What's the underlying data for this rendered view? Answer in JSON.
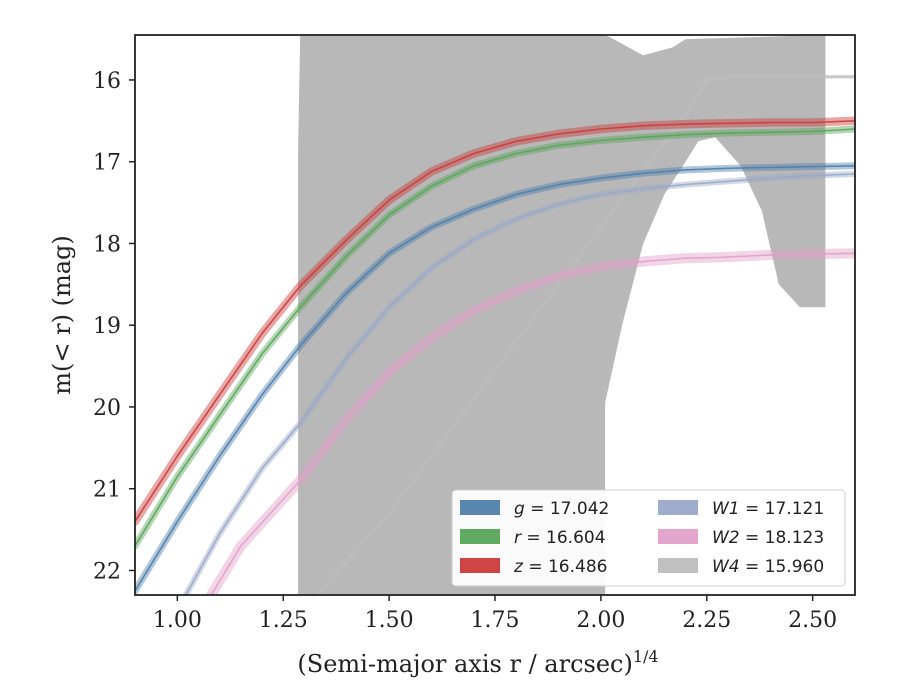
{
  "chart_data": {
    "type": "line",
    "xlabel": "(Semi-major axis r / arcsec)",
    "xlabel_superscript": "1/4",
    "ylabel": "m(< r) (mag)",
    "xlim": [
      0.9,
      2.6
    ],
    "ylim": [
      22.3,
      15.45
    ],
    "y_inverted": true,
    "grid": false,
    "legend_position": "lower-right",
    "xticks": [
      "1.00",
      "1.25",
      "1.50",
      "1.75",
      "2.00",
      "2.25",
      "2.50"
    ],
    "xtick_values": [
      1.0,
      1.25,
      1.5,
      1.75,
      2.0,
      2.25,
      2.5
    ],
    "yticks": [
      "16",
      "17",
      "18",
      "19",
      "20",
      "21",
      "22"
    ],
    "ytick_values": [
      16,
      17,
      18,
      19,
      20,
      21,
      22
    ],
    "series": [
      {
        "name": "g = 17.042",
        "legend_label": "g",
        "legend_value": "17.042",
        "color": "#4f7fab",
        "points": [
          [
            0.9,
            22.25
          ],
          [
            1.0,
            21.4
          ],
          [
            1.1,
            20.6
          ],
          [
            1.2,
            19.85
          ],
          [
            1.29,
            19.25
          ],
          [
            1.4,
            18.6
          ],
          [
            1.5,
            18.12
          ],
          [
            1.6,
            17.8
          ],
          [
            1.7,
            17.58
          ],
          [
            1.8,
            17.4
          ],
          [
            1.9,
            17.28
          ],
          [
            2.0,
            17.2
          ],
          [
            2.1,
            17.14
          ],
          [
            2.2,
            17.1
          ],
          [
            2.3,
            17.08
          ],
          [
            2.4,
            17.07
          ],
          [
            2.5,
            17.06
          ],
          [
            2.6,
            17.05
          ]
        ],
        "band_width": 0.06
      },
      {
        "name": "r = 16.604",
        "legend_label": "r",
        "legend_value": "16.604",
        "color": "#5aa55a",
        "points": [
          [
            0.9,
            21.7
          ],
          [
            1.0,
            20.85
          ],
          [
            1.1,
            20.1
          ],
          [
            1.2,
            19.35
          ],
          [
            1.29,
            18.78
          ],
          [
            1.4,
            18.15
          ],
          [
            1.5,
            17.65
          ],
          [
            1.6,
            17.3
          ],
          [
            1.7,
            17.05
          ],
          [
            1.8,
            16.9
          ],
          [
            1.9,
            16.8
          ],
          [
            2.0,
            16.74
          ],
          [
            2.1,
            16.7
          ],
          [
            2.2,
            16.67
          ],
          [
            2.3,
            16.65
          ],
          [
            2.4,
            16.64
          ],
          [
            2.5,
            16.63
          ],
          [
            2.6,
            16.6
          ]
        ],
        "band_width": 0.06
      },
      {
        "name": "z = 16.486",
        "legend_label": "z",
        "legend_value": "16.486",
        "color": "#cc3b3b",
        "points": [
          [
            0.9,
            21.4
          ],
          [
            1.0,
            20.6
          ],
          [
            1.1,
            19.85
          ],
          [
            1.2,
            19.1
          ],
          [
            1.29,
            18.52
          ],
          [
            1.4,
            17.95
          ],
          [
            1.5,
            17.47
          ],
          [
            1.6,
            17.12
          ],
          [
            1.7,
            16.9
          ],
          [
            1.8,
            16.75
          ],
          [
            1.9,
            16.66
          ],
          [
            2.0,
            16.6
          ],
          [
            2.1,
            16.56
          ],
          [
            2.2,
            16.54
          ],
          [
            2.3,
            16.53
          ],
          [
            2.4,
            16.52
          ],
          [
            2.5,
            16.52
          ],
          [
            2.6,
            16.5
          ]
        ],
        "band_width": 0.08
      },
      {
        "name": "W1 = 17.121",
        "legend_label": "W1",
        "legend_value": "17.121",
        "color": "#9aa8c8",
        "points": [
          [
            1.02,
            22.3
          ],
          [
            1.1,
            21.55
          ],
          [
            1.2,
            20.75
          ],
          [
            1.29,
            20.2
          ],
          [
            1.4,
            19.4
          ],
          [
            1.5,
            18.78
          ],
          [
            1.6,
            18.3
          ],
          [
            1.7,
            17.95
          ],
          [
            1.8,
            17.7
          ],
          [
            1.9,
            17.52
          ],
          [
            2.0,
            17.4
          ],
          [
            2.1,
            17.33
          ],
          [
            2.2,
            17.28
          ],
          [
            2.3,
            17.24
          ],
          [
            2.4,
            17.2
          ],
          [
            2.5,
            17.17
          ],
          [
            2.6,
            17.15
          ]
        ],
        "band_width": 0.05
      },
      {
        "name": "W2 = 18.123",
        "legend_label": "W2",
        "legend_value": "18.123",
        "color": "#e0a0c8",
        "points": [
          [
            1.08,
            22.3
          ],
          [
            1.15,
            21.7
          ],
          [
            1.29,
            20.9
          ],
          [
            1.4,
            20.15
          ],
          [
            1.5,
            19.58
          ],
          [
            1.6,
            19.15
          ],
          [
            1.7,
            18.82
          ],
          [
            1.8,
            18.58
          ],
          [
            1.9,
            18.4
          ],
          [
            2.0,
            18.28
          ],
          [
            2.1,
            18.22
          ],
          [
            2.2,
            18.18
          ],
          [
            2.28,
            18.17
          ],
          [
            2.4,
            18.14
          ],
          [
            2.5,
            18.13
          ],
          [
            2.6,
            18.12
          ]
        ],
        "band_width": 0.1
      },
      {
        "name": "W4 = 15.960",
        "legend_label": "W4",
        "legend_value": "15.960",
        "color": "#bdbdbd",
        "points": [
          [
            1.33,
            22.3
          ],
          [
            1.5,
            21.3
          ],
          [
            1.7,
            19.9
          ],
          [
            1.9,
            18.5
          ],
          [
            2.0,
            17.8
          ],
          [
            2.1,
            17.1
          ],
          [
            2.2,
            16.45
          ],
          [
            2.25,
            16.0
          ],
          [
            2.3,
            15.96
          ],
          [
            2.6,
            15.96
          ]
        ],
        "band_width": 0.02
      }
    ],
    "uncertainty_region": {
      "color": "#b8b8b8",
      "upper": [
        [
          1.285,
          16.85
        ],
        [
          1.29,
          15.45
        ],
        [
          2.0,
          15.45
        ],
        [
          2.01,
          15.45
        ],
        [
          2.03,
          15.5
        ],
        [
          2.1,
          15.7
        ],
        [
          2.17,
          15.6
        ],
        [
          2.2,
          15.5
        ],
        [
          2.53,
          15.45
        ]
      ],
      "lower": [
        [
          1.285,
          22.3
        ],
        [
          2.01,
          22.3
        ],
        [
          2.01,
          19.95
        ],
        [
          2.05,
          19.0
        ],
        [
          2.1,
          18.0
        ],
        [
          2.15,
          17.4
        ],
        [
          2.2,
          17.0
        ],
        [
          2.23,
          16.75
        ],
        [
          2.27,
          16.7
        ],
        [
          2.33,
          17.05
        ],
        [
          2.38,
          17.6
        ],
        [
          2.42,
          18.5
        ],
        [
          2.47,
          18.78
        ],
        [
          2.53,
          18.78
        ]
      ]
    }
  }
}
